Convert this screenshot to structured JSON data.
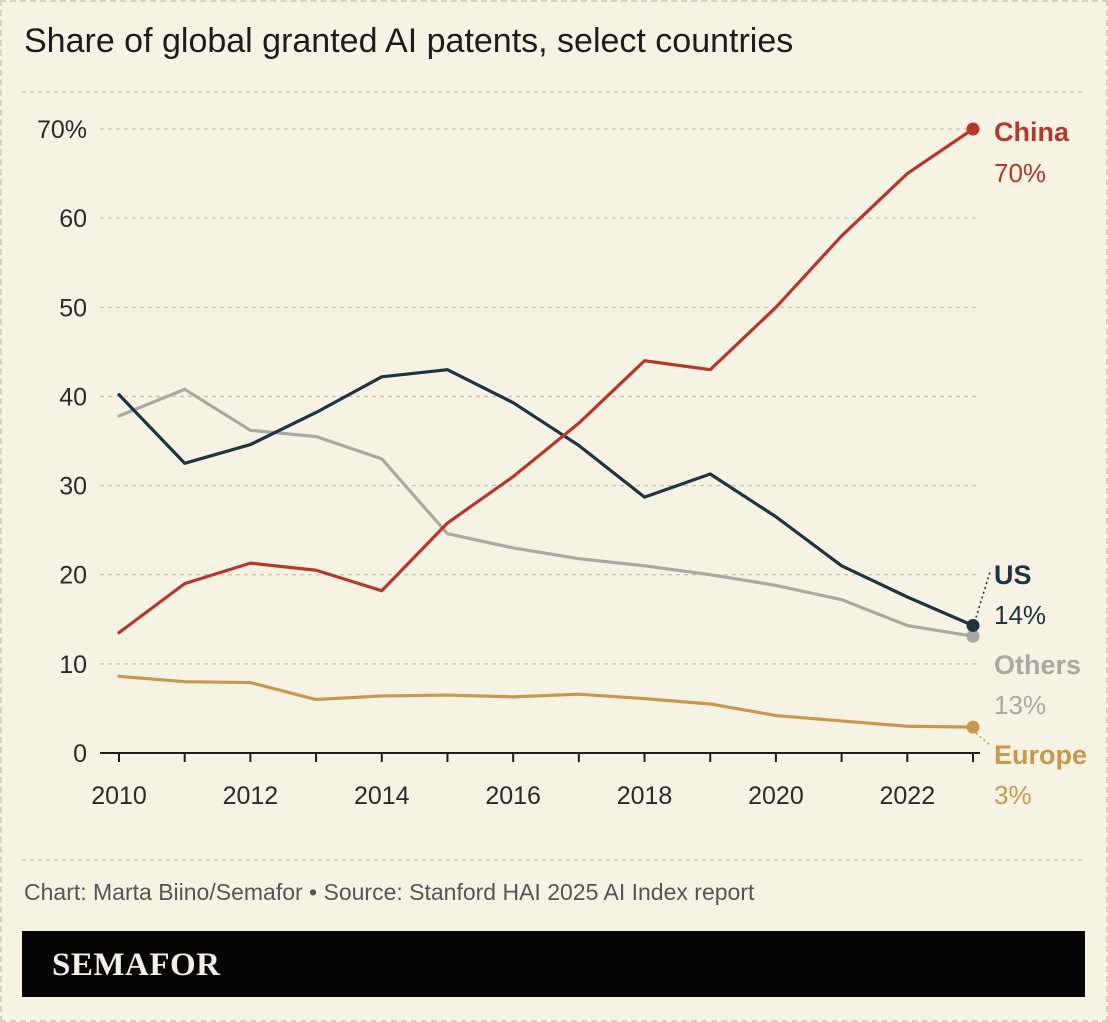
{
  "chart_data": {
    "type": "line",
    "title": "Share of global granted AI patents, select countries",
    "x": [
      2010,
      2011,
      2012,
      2013,
      2014,
      2015,
      2016,
      2017,
      2018,
      2019,
      2020,
      2021,
      2022,
      2023
    ],
    "x_ticks": [
      "2010",
      "2012",
      "2014",
      "2016",
      "2018",
      "2020",
      "2022"
    ],
    "y_ticks": [
      "0",
      "10",
      "20",
      "30",
      "40",
      "50",
      "60",
      "70%"
    ],
    "ylim": [
      0,
      70
    ],
    "grid": true,
    "series": [
      {
        "name": "China",
        "end_label": "70%",
        "color": "#b5382a",
        "values": [
          13.5,
          19,
          21.3,
          20.5,
          18.2,
          25.8,
          31,
          37,
          44,
          43,
          50,
          58,
          65,
          70
        ]
      },
      {
        "name": "US",
        "end_label": "14%",
        "color": "#1e3441",
        "values": [
          40.2,
          32.5,
          34.6,
          38.2,
          42.2,
          43,
          39.3,
          34.5,
          28.7,
          31.3,
          26.5,
          21,
          17.5,
          14.3
        ]
      },
      {
        "name": "Others",
        "end_label": "13%",
        "color": "#a9a8a2",
        "values": [
          37.8,
          40.8,
          36.2,
          35.5,
          33,
          24.6,
          23,
          21.8,
          21,
          20,
          18.8,
          17.2,
          14.3,
          13.1
        ]
      },
      {
        "name": "Europe",
        "end_label": "3%",
        "color": "#c7994f",
        "values": [
          8.6,
          8,
          7.9,
          6,
          6.4,
          6.5,
          6.3,
          6.6,
          6.1,
          5.5,
          4.2,
          3.6,
          3,
          2.9
        ]
      }
    ]
  },
  "source": "Chart: Marta Biino/Semafor • Source: Stanford HAI 2025 AI Index report",
  "brand": "SEMAFOR"
}
